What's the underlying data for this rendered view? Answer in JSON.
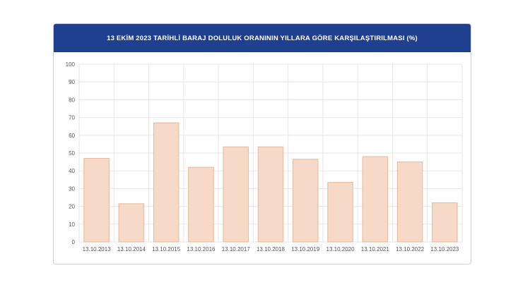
{
  "chart_data": {
    "type": "bar",
    "title": "13 EKİM 2023 TARİHLİ BARAJ DOLULUK ORANININ YILLARA GÖRE KARŞILAŞTIRILMASI (%)",
    "categories": [
      "13.10.2013",
      "13.10.2014",
      "13.10.2015",
      "13.10.2016",
      "13.10.2017",
      "13.10.2018",
      "13.10.2019",
      "13.10.2020",
      "13.10.2021",
      "13.10.2022",
      "13.10.2023"
    ],
    "values": [
      47,
      21.5,
      67,
      42,
      53.5,
      53.5,
      46.5,
      33.5,
      48,
      45,
      22
    ],
    "ylim": [
      0,
      100
    ],
    "yticks": [
      0,
      10,
      20,
      30,
      40,
      50,
      60,
      70,
      80,
      90,
      100
    ],
    "grid": true,
    "colors": {
      "bar_fill": "#f6d9c6",
      "bar_stroke": "#e9b79a",
      "grid": "#e6e6e6",
      "header_bg": "#1f3f8f"
    }
  }
}
